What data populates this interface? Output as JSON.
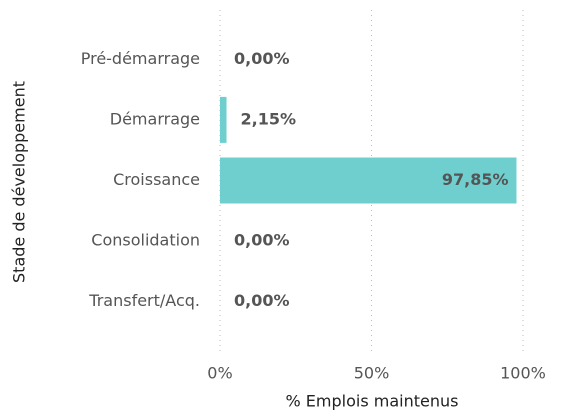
{
  "chart_data": {
    "type": "hbar",
    "categories": [
      "Pré-démarrage",
      "Démarrage",
      "Croissance",
      "Consolidation",
      "Transfert/Acq."
    ],
    "values": [
      0,
      2.15,
      97.85,
      0,
      0
    ],
    "value_labels": [
      "0,00%",
      "2,15%",
      "97,85%",
      "0,00%",
      "0,00%"
    ],
    "color": "#6fcfcf",
    "xlim": [
      0,
      100
    ],
    "xticks": [
      {
        "value": 0,
        "label": "0%"
      },
      {
        "value": 50,
        "label": "50%"
      },
      {
        "value": 100,
        "label": "100%"
      }
    ],
    "xlabel": "% Emplois maintenus",
    "ylabel": "Stade de développement",
    "grid": true
  }
}
